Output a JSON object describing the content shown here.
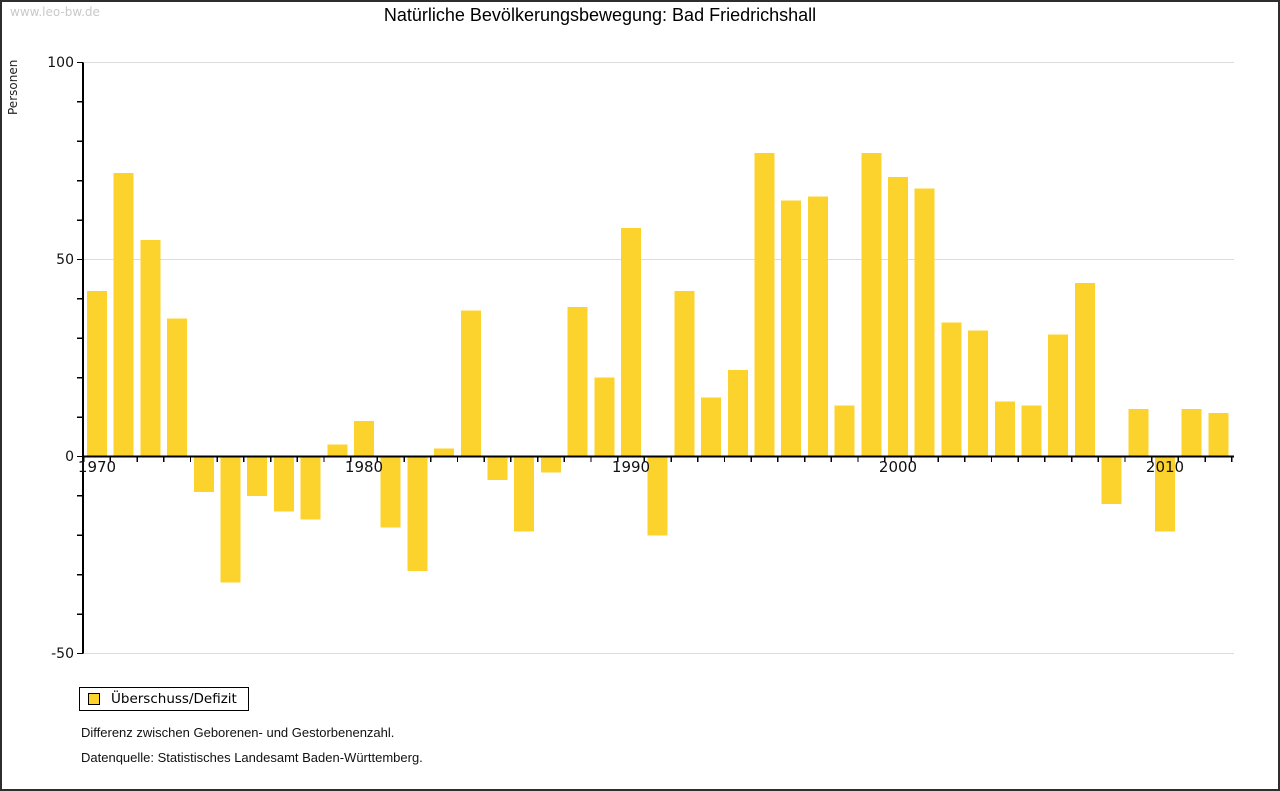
{
  "watermark": "www.leo-bw.de",
  "header": {
    "title": "Natürliche Bevölkerungsbewegung: Bad Friedrichshall"
  },
  "legend": {
    "label": "Überschuss/Defizit"
  },
  "footnotes": {
    "line1": "Differenz zwischen Geborenen- und Gestorbenenzahl.",
    "line2": "Datenquelle: Statistisches Landesamt Baden-Württemberg."
  },
  "colors": {
    "bar": "#FCD32D",
    "grid": "#DCDCDC",
    "axis": "#000000",
    "tick_label": "#111111",
    "watermark": "#C9C9C9"
  },
  "chart_data": {
    "type": "bar",
    "title": "Natürliche Bevölkerungsbewegung: Bad Friedrichshall",
    "series_name": "Überschuss/Defizit",
    "xlabel": "",
    "ylabel": "Personen",
    "ylim": [
      -50,
      100
    ],
    "y_major_ticks": [
      -50,
      0,
      50,
      100
    ],
    "y_minor_step": 10,
    "x_labeled_years": [
      1970,
      1980,
      1990,
      2000,
      2010
    ],
    "grid": "horizontal-major",
    "legend_position": "bottom-left",
    "x": [
      1970,
      1971,
      1972,
      1973,
      1974,
      1975,
      1976,
      1977,
      1978,
      1979,
      1980,
      1981,
      1982,
      1983,
      1984,
      1985,
      1986,
      1987,
      1988,
      1989,
      1990,
      1991,
      1992,
      1993,
      1994,
      1995,
      1996,
      1997,
      1998,
      1999,
      2000,
      2001,
      2002,
      2003,
      2004,
      2005,
      2006,
      2007,
      2008,
      2009,
      2010,
      2011,
      2012
    ],
    "values": [
      42,
      72,
      55,
      35,
      -9,
      -32,
      -10,
      -14,
      -16,
      3,
      9,
      -18,
      -29,
      2,
      37,
      -6,
      -19,
      -4,
      38,
      20,
      58,
      -20,
      42,
      15,
      22,
      77,
      65,
      66,
      13,
      77,
      71,
      68,
      34,
      32,
      14,
      13,
      31,
      44,
      -12,
      12,
      -19,
      12,
      11
    ]
  }
}
